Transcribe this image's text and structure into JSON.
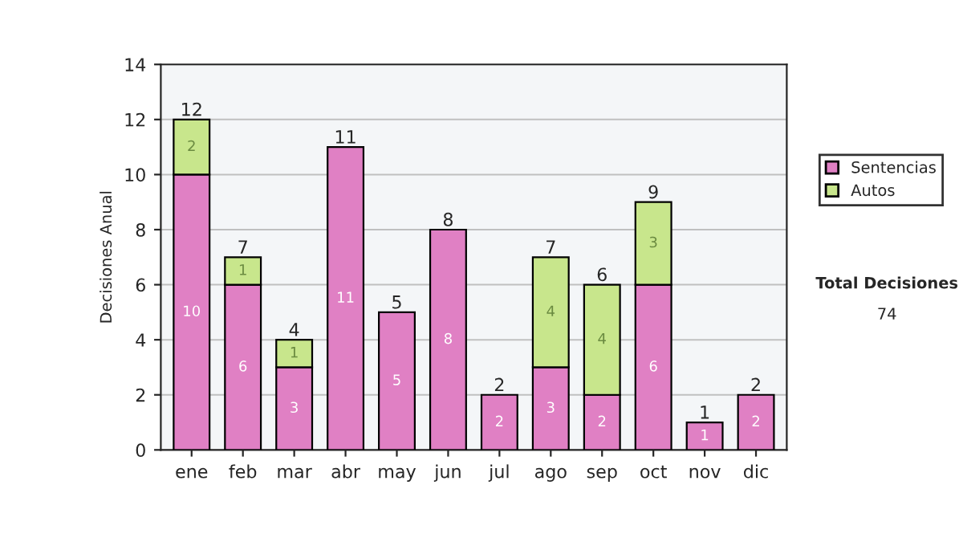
{
  "chart_data": {
    "type": "bar",
    "stacked": true,
    "ylabel": "Decisiones Anual",
    "categories": [
      "ene",
      "feb",
      "mar",
      "abr",
      "may",
      "jun",
      "jul",
      "ago",
      "sep",
      "oct",
      "nov",
      "dic"
    ],
    "series": [
      {
        "name": "Sentencias",
        "color": "#e080c4",
        "values": [
          10,
          6,
          3,
          11,
          5,
          8,
          2,
          3,
          2,
          6,
          1,
          2
        ],
        "value_labels": [
          "10",
          "6",
          "3",
          "11",
          "5",
          "8",
          "2",
          "3",
          "2",
          "6",
          "1",
          "2"
        ]
      },
      {
        "name": "Autos",
        "color": "#c8e68c",
        "values": [
          2,
          1,
          1,
          0,
          0,
          0,
          0,
          4,
          4,
          3,
          0,
          0
        ],
        "value_labels": [
          "2",
          "1",
          "1",
          null,
          null,
          null,
          null,
          "4",
          "4",
          "3",
          null,
          null
        ]
      }
    ],
    "totals": [
      "12",
      "7",
      "4",
      "11",
      "5",
      "8",
      "2",
      "7",
      "6",
      "9",
      "1",
      "2"
    ],
    "ylim": [
      0,
      14
    ],
    "yticks": [
      0,
      2,
      4,
      6,
      8,
      10,
      12,
      14
    ],
    "grid": "y",
    "legend": "right",
    "annotations": [
      "Total Decisiones",
      "74"
    ]
  }
}
